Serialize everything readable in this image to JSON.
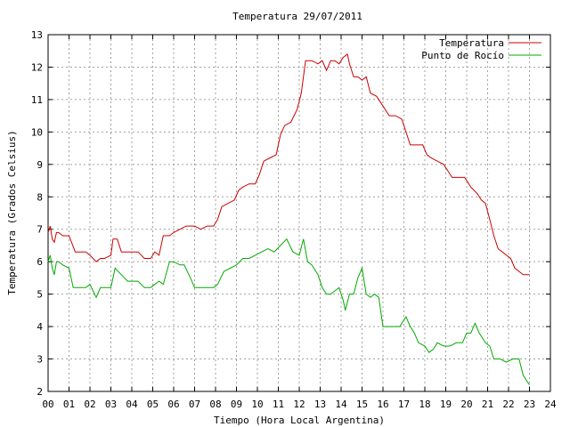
{
  "chart_data": {
    "type": "line",
    "title": "Temperatura 29/07/2011",
    "xlabel": "Tiempo (Hora Local Argentina)",
    "ylabel": "Temperatura (Grados Celsius)",
    "xlim": [
      0,
      24
    ],
    "ylim": [
      2,
      13
    ],
    "x_ticks": [
      0,
      1,
      2,
      3,
      4,
      5,
      6,
      7,
      8,
      9,
      10,
      11,
      12,
      13,
      14,
      15,
      16,
      17,
      18,
      19,
      20,
      21,
      22,
      23,
      24
    ],
    "x_tick_labels": [
      "00",
      "01",
      "02",
      "03",
      "04",
      "05",
      "06",
      "07",
      "08",
      "09",
      "10",
      "11",
      "12",
      "13",
      "14",
      "15",
      "16",
      "17",
      "18",
      "19",
      "20",
      "21",
      "22",
      "23",
      "24"
    ],
    "y_ticks": [
      2,
      3,
      4,
      5,
      6,
      7,
      8,
      9,
      10,
      11,
      12,
      13
    ],
    "grid": true,
    "legend_position": "top-right",
    "series": [
      {
        "name": "Temperatura",
        "color": "#cc0000",
        "x": [
          0,
          0.1,
          0.2,
          0.3,
          0.4,
          0.5,
          0.7,
          1.0,
          1.3,
          1.5,
          1.8,
          2.0,
          2.3,
          2.5,
          2.7,
          3.0,
          3.1,
          3.3,
          3.5,
          3.8,
          4.0,
          4.3,
          4.6,
          4.9,
          5.1,
          5.3,
          5.5,
          5.8,
          6.0,
          6.3,
          6.6,
          7.0,
          7.3,
          7.6,
          7.9,
          8.1,
          8.3,
          8.6,
          8.9,
          9.1,
          9.3,
          9.6,
          9.9,
          10.1,
          10.3,
          10.6,
          10.9,
          11.1,
          11.3,
          11.6,
          11.9,
          12.1,
          12.3,
          12.6,
          12.9,
          13.1,
          13.3,
          13.5,
          13.7,
          13.9,
          14.1,
          14.3,
          14.4,
          14.6,
          14.8,
          15.0,
          15.2,
          15.4,
          15.7,
          16.0,
          16.3,
          16.6,
          16.9,
          17.1,
          17.3,
          17.6,
          17.9,
          18.1,
          18.3,
          18.6,
          18.9,
          19.1,
          19.3,
          19.6,
          19.9,
          20.2,
          20.5,
          20.7,
          20.9,
          21.1,
          21.3,
          21.5,
          21.7,
          21.9,
          22.1,
          22.3,
          22.5,
          22.7,
          22.9,
          23.0
        ],
        "values": [
          6.9,
          7.1,
          6.7,
          6.6,
          6.9,
          6.9,
          6.8,
          6.8,
          6.3,
          6.3,
          6.3,
          6.2,
          6.0,
          6.1,
          6.1,
          6.2,
          6.7,
          6.7,
          6.3,
          6.3,
          6.3,
          6.3,
          6.1,
          6.1,
          6.3,
          6.2,
          6.8,
          6.8,
          6.9,
          7.0,
          7.1,
          7.1,
          7.0,
          7.1,
          7.1,
          7.3,
          7.7,
          7.8,
          7.9,
          8.2,
          8.3,
          8.4,
          8.4,
          8.7,
          9.1,
          9.2,
          9.3,
          9.9,
          10.2,
          10.3,
          10.7,
          11.2,
          12.2,
          12.2,
          12.1,
          12.2,
          11.9,
          12.2,
          12.2,
          12.1,
          12.3,
          12.4,
          12.1,
          11.7,
          11.7,
          11.6,
          11.7,
          11.2,
          11.1,
          10.8,
          10.5,
          10.5,
          10.4,
          10.0,
          9.6,
          9.6,
          9.6,
          9.3,
          9.2,
          9.1,
          9.0,
          8.8,
          8.6,
          8.6,
          8.6,
          8.3,
          8.1,
          7.9,
          7.8,
          7.3,
          6.8,
          6.4,
          6.3,
          6.2,
          6.1,
          5.8,
          5.7,
          5.6,
          5.6,
          5.6
        ]
      },
      {
        "name": "Punto de Rocío",
        "color": "#00aa00",
        "x": [
          0,
          0.1,
          0.2,
          0.3,
          0.4,
          0.5,
          0.7,
          1.0,
          1.2,
          1.5,
          1.8,
          2.0,
          2.3,
          2.5,
          2.7,
          3.0,
          3.2,
          3.5,
          3.8,
          4.0,
          4.3,
          4.6,
          4.9,
          5.1,
          5.3,
          5.5,
          5.8,
          6.0,
          6.3,
          6.5,
          6.8,
          7.0,
          7.3,
          7.6,
          7.9,
          8.1,
          8.4,
          8.7,
          9.0,
          9.3,
          9.6,
          9.9,
          10.2,
          10.5,
          10.8,
          11.1,
          11.4,
          11.7,
          12.0,
          12.2,
          12.4,
          12.6,
          12.9,
          13.1,
          13.3,
          13.5,
          13.7,
          13.9,
          14.1,
          14.2,
          14.4,
          14.6,
          14.8,
          15.0,
          15.2,
          15.4,
          15.6,
          15.8,
          16.0,
          16.2,
          16.5,
          16.8,
          17.1,
          17.3,
          17.5,
          17.7,
          18.0,
          18.2,
          18.4,
          18.6,
          18.9,
          19.2,
          19.5,
          19.8,
          20.0,
          20.2,
          20.4,
          20.6,
          20.9,
          21.1,
          21.3,
          21.6,
          21.9,
          22.2,
          22.5,
          22.7,
          22.9,
          23.0
        ],
        "values": [
          6.0,
          6.2,
          5.8,
          5.6,
          6.0,
          6.0,
          5.9,
          5.8,
          5.2,
          5.2,
          5.2,
          5.3,
          4.9,
          5.2,
          5.2,
          5.2,
          5.8,
          5.6,
          5.4,
          5.4,
          5.4,
          5.2,
          5.2,
          5.3,
          5.4,
          5.3,
          6.0,
          6.0,
          5.9,
          5.9,
          5.5,
          5.2,
          5.2,
          5.2,
          5.2,
          5.3,
          5.7,
          5.8,
          5.9,
          6.1,
          6.1,
          6.2,
          6.3,
          6.4,
          6.3,
          6.5,
          6.7,
          6.3,
          6.2,
          6.7,
          6.0,
          5.9,
          5.6,
          5.2,
          5.0,
          5.0,
          5.1,
          5.2,
          4.8,
          4.5,
          5.0,
          5.0,
          5.5,
          5.8,
          5.0,
          4.9,
          5.0,
          4.9,
          4.0,
          4.0,
          4.0,
          4.0,
          4.3,
          4.0,
          3.8,
          3.5,
          3.4,
          3.2,
          3.3,
          3.5,
          3.4,
          3.4,
          3.5,
          3.5,
          3.8,
          3.8,
          4.1,
          3.8,
          3.5,
          3.4,
          3.0,
          3.0,
          2.9,
          3.0,
          3.0,
          2.5,
          2.3,
          2.2
        ]
      }
    ]
  }
}
